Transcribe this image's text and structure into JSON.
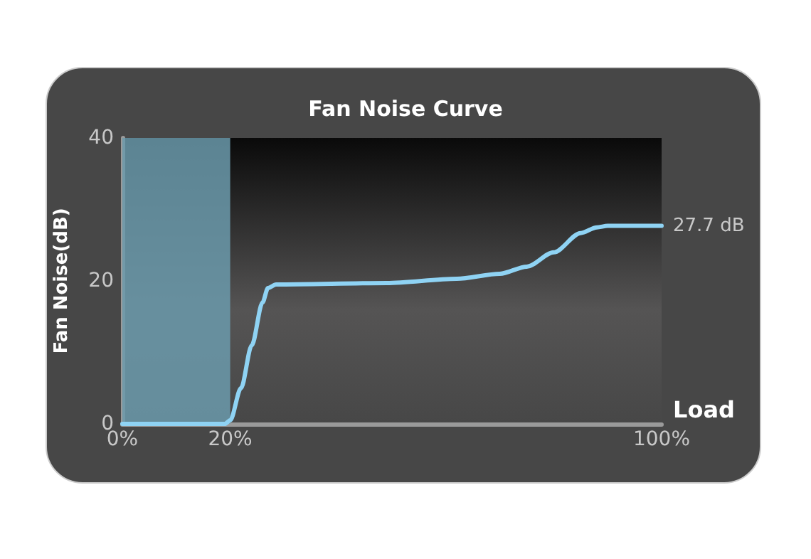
{
  "chart_data": {
    "type": "line",
    "title": "Fan Noise Curve",
    "xlabel": "Load",
    "ylabel": "Fan Noise(dB)",
    "x": [
      0,
      19,
      20,
      22,
      24,
      26,
      27,
      28.5,
      49,
      62,
      70,
      75,
      80,
      85,
      88,
      90,
      100
    ],
    "series": [
      {
        "color": "#8fd3f4",
        "values": [
          0,
          0,
          0.5,
          5,
          11,
          17,
          19,
          19.5,
          19.7,
          20.3,
          21,
          22,
          24,
          26.7,
          27.5,
          27.7,
          27.7
        ]
      }
    ],
    "xlim": [
      0,
      100
    ],
    "xticks": [
      {
        "value": 0,
        "label": "0%"
      },
      {
        "value": 20,
        "label": "20%"
      },
      {
        "value": 100,
        "label": "100%"
      }
    ],
    "ylim": [
      0,
      40
    ],
    "yticks": [
      0,
      20,
      40
    ],
    "bands": [
      {
        "axis": "x",
        "from": 0,
        "to": 20,
        "color": "#6b9aab"
      }
    ],
    "annotations": [
      {
        "text": "27.7 dB",
        "x": 100,
        "y": 27.7
      }
    ],
    "marker": "none",
    "line_style": "solid"
  }
}
